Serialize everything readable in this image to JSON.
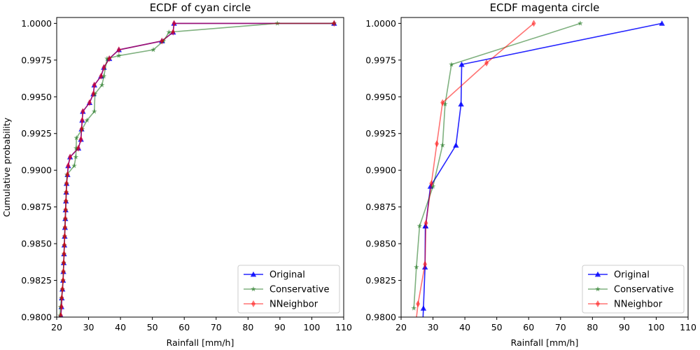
{
  "colors": {
    "original": "#0000ff",
    "conservative": "#006400",
    "nneighbor": "#ff0000"
  },
  "chart_data": [
    {
      "type": "line",
      "title": "ECDF of cyan circle",
      "xlabel": "Rainfall [mm/h]",
      "ylabel": "Cumulative probability",
      "xlim": [
        20,
        110
      ],
      "ylim": [
        0.98,
        1.0004
      ],
      "xticks": [
        "20",
        "30",
        "40",
        "50",
        "60",
        "70",
        "80",
        "90",
        "100",
        "110"
      ],
      "yticks": [
        "0.9800",
        "0.9825",
        "0.9850",
        "0.9875",
        "0.9900",
        "0.9925",
        "0.9950",
        "0.9975",
        "1.0000"
      ],
      "legend": {
        "position": "lower-right",
        "entries": [
          "Original",
          "Conservative",
          "NNeighbor"
        ]
      },
      "series": [
        {
          "name": "Original",
          "marker": "triangle",
          "alpha": 0.85,
          "x": [
            21.3,
            21.5,
            21.6,
            21.8,
            22.0,
            22.1,
            22.2,
            22.3,
            22.4,
            22.5,
            22.6,
            22.7,
            22.8,
            22.9,
            23.0,
            23.1,
            23.4,
            23.6,
            24.2,
            26.8,
            27.6,
            27.8,
            28.0,
            28.2,
            30.3,
            31.5,
            31.8,
            33.9,
            34.8,
            36.5,
            39.5,
            53.0,
            56.5,
            56.8,
            107.0
          ],
          "y": [
            0.9801,
            0.9807,
            0.9813,
            0.9819,
            0.9825,
            0.9831,
            0.9837,
            0.9843,
            0.9849,
            0.9855,
            0.9861,
            0.9867,
            0.9873,
            0.9879,
            0.9885,
            0.9891,
            0.9897,
            0.9903,
            0.9909,
            0.9915,
            0.9921,
            0.9928,
            0.9934,
            0.994,
            0.9946,
            0.9952,
            0.9958,
            0.9964,
            0.997,
            0.9976,
            0.9982,
            0.9988,
            0.9994,
            1.0,
            1.0
          ]
        },
        {
          "name": "Conservative",
          "marker": "star",
          "alpha": 0.5,
          "x": [
            21.0,
            21.2,
            21.5,
            21.8,
            22.0,
            22.1,
            22.2,
            22.3,
            22.4,
            22.5,
            22.6,
            22.7,
            22.8,
            22.9,
            23.0,
            23.1,
            23.2,
            25.5,
            26.0,
            26.1,
            26.2,
            28.0,
            29.5,
            31.8,
            32.0,
            34.2,
            34.8,
            35.8,
            39.5,
            50.3,
            53.5,
            55.2,
            89.2,
            107.0
          ],
          "y": [
            0.9801,
            0.9807,
            0.9813,
            0.9819,
            0.9825,
            0.9831,
            0.9837,
            0.9843,
            0.9849,
            0.9855,
            0.9861,
            0.9867,
            0.9873,
            0.9879,
            0.9885,
            0.9891,
            0.9897,
            0.9903,
            0.9909,
            0.9915,
            0.9922,
            0.9928,
            0.9934,
            0.994,
            0.9952,
            0.9958,
            0.9964,
            0.9976,
            0.9978,
            0.9982,
            0.9988,
            0.9994,
            1.0,
            1.0
          ]
        },
        {
          "name": "NNeighbor",
          "marker": "diamond",
          "alpha": 0.55,
          "x": [
            21.3,
            21.5,
            21.6,
            21.8,
            22.0,
            22.1,
            22.2,
            22.3,
            22.4,
            22.5,
            22.6,
            22.7,
            22.8,
            22.9,
            23.0,
            23.1,
            23.4,
            23.6,
            24.2,
            26.8,
            27.6,
            27.8,
            28.0,
            28.2,
            30.3,
            31.5,
            31.8,
            33.9,
            34.8,
            36.5,
            39.5,
            53.0,
            56.5,
            56.8,
            107.0
          ],
          "y": [
            0.9801,
            0.9807,
            0.9813,
            0.9819,
            0.9825,
            0.9831,
            0.9837,
            0.9843,
            0.9849,
            0.9855,
            0.9861,
            0.9867,
            0.9873,
            0.9879,
            0.9885,
            0.9891,
            0.9897,
            0.9903,
            0.9909,
            0.9915,
            0.9921,
            0.9928,
            0.9934,
            0.994,
            0.9946,
            0.9952,
            0.9958,
            0.9964,
            0.997,
            0.9976,
            0.9982,
            0.9988,
            0.9994,
            1.0,
            1.0
          ]
        }
      ]
    },
    {
      "type": "line",
      "title": "ECDF magenta circle",
      "xlabel": "Rainfall [mm/h]",
      "ylabel": "",
      "xlim": [
        20,
        110
      ],
      "ylim": [
        0.98,
        1.0004
      ],
      "xticks": [
        "20",
        "30",
        "40",
        "50",
        "60",
        "70",
        "80",
        "90",
        "100",
        "110"
      ],
      "yticks": [
        "0.9800",
        "0.9825",
        "0.9850",
        "0.9875",
        "0.9900",
        "0.9925",
        "0.9950",
        "0.9975",
        "1.0000"
      ],
      "legend": {
        "position": "lower-right",
        "entries": [
          "Original",
          "Conservative",
          "NNeighbor"
        ]
      },
      "series": [
        {
          "name": "Original",
          "marker": "triangle",
          "alpha": 0.85,
          "x": [
            26.5,
            27.0,
            27.5,
            27.6,
            27.7,
            29.2,
            37.2,
            38.8,
            39.0,
            101.8
          ],
          "y": [
            0.978,
            0.9806,
            0.9834,
            0.9862,
            0.9862,
            0.9889,
            0.9917,
            0.9945,
            0.9972,
            1.0
          ]
        },
        {
          "name": "Conservative",
          "marker": "star",
          "alpha": 0.5,
          "x": [
            24.0,
            24.8,
            25.8,
            30.0,
            33.0,
            33.8,
            35.8,
            76.2
          ],
          "y": [
            0.9806,
            0.9834,
            0.9862,
            0.9889,
            0.9917,
            0.9945,
            0.9972,
            1.0
          ]
        },
        {
          "name": "NNeighbor",
          "marker": "diamond",
          "alpha": 0.55,
          "x": [
            23.8,
            25.3,
            27.5,
            27.8,
            29.5,
            31.2,
            33.0,
            46.8,
            61.6
          ],
          "y": [
            0.978,
            0.9809,
            0.9836,
            0.9864,
            0.9891,
            0.9918,
            0.9946,
            0.9973,
            1.0
          ]
        }
      ]
    }
  ]
}
